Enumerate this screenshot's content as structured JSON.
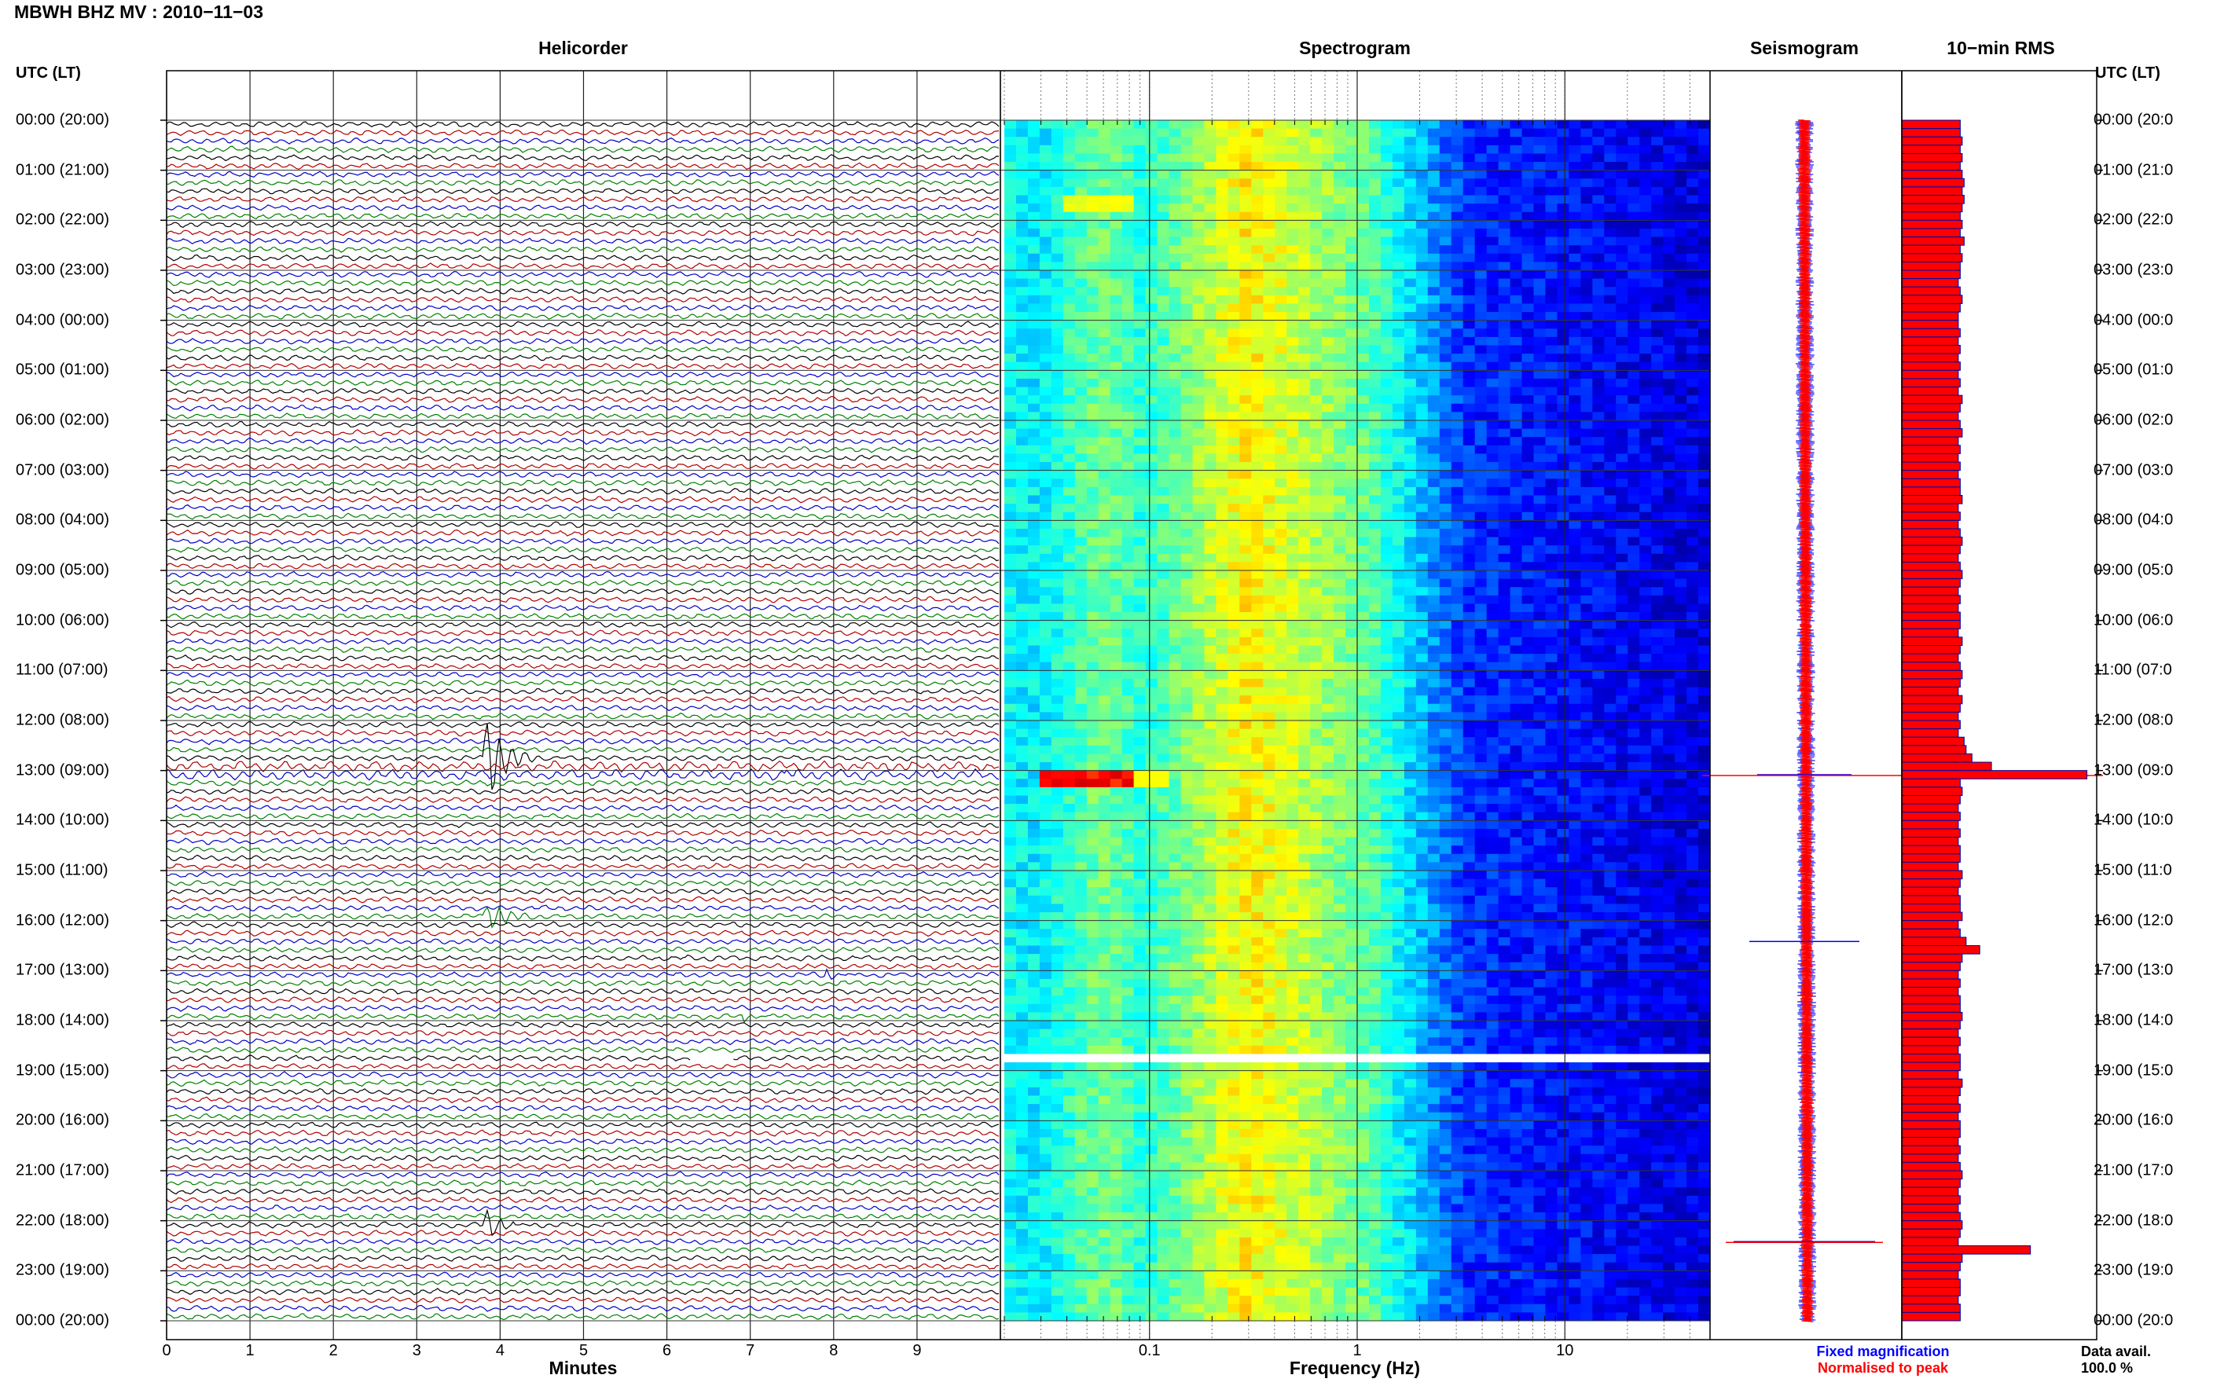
{
  "page_title": "MBWH BHZ MV : 2010−11−03",
  "panels": {
    "helicorder": "Helicorder",
    "spectrogram": "Spectrogram",
    "seismogram": "Seismogram",
    "rms": "10−min RMS"
  },
  "time_axis_header": "UTC (LT)",
  "time_labels": [
    "00:00 (20:00)",
    "01:00 (21:00)",
    "02:00 (22:00)",
    "03:00 (23:00)",
    "04:00 (00:00)",
    "05:00 (01:00)",
    "06:00 (02:00)",
    "07:00 (03:00)",
    "08:00 (04:00)",
    "09:00 (05:00)",
    "10:00 (06:00)",
    "11:00 (07:00)",
    "12:00 (08:00)",
    "13:00 (09:00)",
    "14:00 (10:00)",
    "15:00 (11:00)",
    "16:00 (12:00)",
    "17:00 (13:00)",
    "18:00 (14:00)",
    "19:00 (15:00)",
    "20:00 (16:00)",
    "21:00 (17:00)",
    "22:00 (18:00)",
    "23:00 (19:00)",
    "00:00 (20:00)"
  ],
  "right_time_labels": [
    "00:00 (20:0",
    "01:00 (21:0",
    "02:00 (22:0",
    "03:00 (23:0",
    "04:00 (00:0",
    "05:00 (01:0",
    "06:00 (02:0",
    "07:00 (03:0",
    "08:00 (04:0",
    "09:00 (05:0",
    "10:00 (06:0",
    "11:00 (07:0",
    "12:00 (08:0",
    "13:00 (09:0",
    "14:00 (10:0",
    "15:00 (11:0",
    "16:00 (12:0",
    "17:00 (13:0",
    "18:00 (14:0",
    "19:00 (15:0",
    "20:00 (16:0",
    "21:00 (17:0",
    "22:00 (18:0",
    "23:00 (19:0",
    "00:00 (20:0"
  ],
  "helicorder_xticks": [
    "0",
    "1",
    "2",
    "3",
    "4",
    "5",
    "6",
    "7",
    "8",
    "9"
  ],
  "helicorder_xlabel": "Minutes",
  "spectrogram_xticks": [
    "0.1",
    "1",
    "10"
  ],
  "spectrogram_xlabel": "Frequency (Hz)",
  "legend": {
    "fixed": "Fixed magnification",
    "normalised": "Normalised to peak",
    "fixed_color": "#0000ff",
    "normalised_color": "#ff0000"
  },
  "data_avail_label": "Data avail.",
  "data_avail_value": "100.0 %",
  "colors": {
    "trace_cycle": [
      "#000000",
      "#b00000",
      "#0000c8",
      "#008000"
    ],
    "rms_bar": "#ff0000",
    "rms_edge": "#0000a0"
  },
  "chart_data": {
    "type": "heatmap",
    "helicorder": {
      "x_units": "minutes",
      "xlim": [
        0,
        10
      ],
      "rows_per_hour": 6,
      "hours": 24,
      "events": [
        {
          "start_time": "12:40",
          "minute": 3.8,
          "amplitude": "large"
        },
        {
          "start_time": "13:00",
          "minute": 7.4,
          "amplitude": "small"
        },
        {
          "start_time": "15:50",
          "minute": 3.8,
          "amplitude": "medium"
        },
        {
          "start_time": "17:00",
          "minute": 7.9,
          "amplitude": "small"
        },
        {
          "start_time": "17:50",
          "minute": 6.9,
          "amplitude": "small"
        },
        {
          "start_time": "22:00",
          "minute": 3.8,
          "amplitude": "medium"
        }
      ],
      "gap": {
        "start_time": "18:40",
        "minute_start": 6.3,
        "minute_end": 6.8
      }
    },
    "spectrogram": {
      "x_scale": "log",
      "xlim_hz": [
        0.02,
        50
      ],
      "peak_band_hz": [
        0.15,
        0.5
      ],
      "low_energy_above_hz": 3
    },
    "seismogram": {
      "series": [
        {
          "name": "Fixed magnification"
        },
        {
          "name": "Normalised to peak"
        }
      ]
    },
    "rms_10min": {
      "values": [
        0.3,
        0.3,
        0.31,
        0.3,
        0.31,
        0.3,
        0.31,
        0.32,
        0.31,
        0.32,
        0.31,
        0.3,
        0.31,
        0.3,
        0.32,
        0.3,
        0.31,
        0.3,
        0.3,
        0.29,
        0.3,
        0.31,
        0.3,
        0.29,
        0.29,
        0.3,
        0.29,
        0.3,
        0.29,
        0.3,
        0.29,
        0.3,
        0.29,
        0.31,
        0.3,
        0.29,
        0.3,
        0.31,
        0.29,
        0.3,
        0.29,
        0.3,
        0.29,
        0.3,
        0.3,
        0.31,
        0.29,
        0.3,
        0.29,
        0.3,
        0.31,
        0.3,
        0.29,
        0.3,
        0.31,
        0.3,
        0.29,
        0.3,
        0.29,
        0.3,
        0.3,
        0.29,
        0.31,
        0.3,
        0.29,
        0.3,
        0.31,
        0.3,
        0.29,
        0.31,
        0.3,
        0.29,
        0.3,
        0.29,
        0.32,
        0.33,
        0.36,
        0.46,
        0.95,
        0.3,
        0.31,
        0.3,
        0.29,
        0.3,
        0.29,
        0.3,
        0.29,
        0.3,
        0.3,
        0.29,
        0.31,
        0.3,
        0.29,
        0.3,
        0.3,
        0.31,
        0.29,
        0.3,
        0.33,
        0.4,
        0.31,
        0.3,
        0.29,
        0.3,
        0.29,
        0.3,
        0.3,
        0.31,
        0.3,
        0.29,
        0.3,
        0.29,
        0.3,
        0.3,
        0.29,
        0.31,
        0.3,
        0.29,
        0.3,
        0.29,
        0.3,
        0.3,
        0.29,
        0.3,
        0.29,
        0.3,
        0.31,
        0.3,
        0.29,
        0.3,
        0.29,
        0.3,
        0.31,
        0.3,
        0.29,
        0.66,
        0.31,
        0.3,
        0.29,
        0.3,
        0.3,
        0.29,
        0.3,
        0.3
      ],
      "xlim": [
        0,
        1
      ]
    }
  }
}
